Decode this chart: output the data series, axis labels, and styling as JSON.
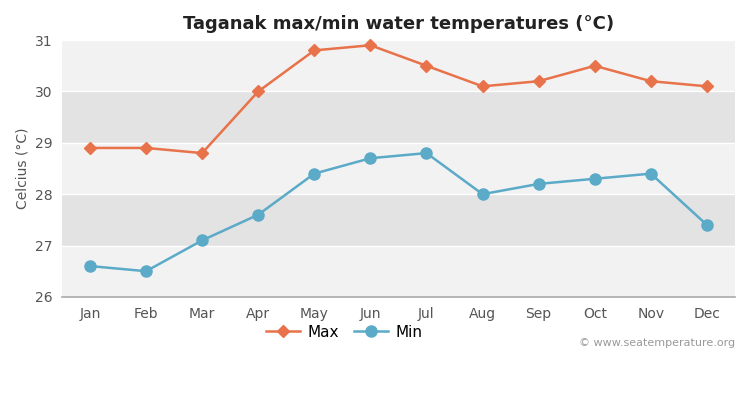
{
  "title": "Taganak max/min water temperatures (°C)",
  "ylabel": "Celcius (°C)",
  "months": [
    "Jan",
    "Feb",
    "Mar",
    "Apr",
    "May",
    "Jun",
    "Jul",
    "Aug",
    "Sep",
    "Oct",
    "Nov",
    "Dec"
  ],
  "max_temps": [
    28.9,
    28.9,
    28.8,
    30.0,
    30.8,
    30.9,
    30.5,
    30.1,
    30.2,
    30.5,
    30.2,
    30.1
  ],
  "min_temps": [
    26.6,
    26.5,
    27.1,
    27.6,
    28.4,
    28.7,
    28.8,
    28.0,
    28.2,
    28.3,
    28.4,
    27.4
  ],
  "ylim": [
    26.0,
    31.0
  ],
  "yticks": [
    26,
    27,
    28,
    29,
    30,
    31
  ],
  "max_color": "#e8724a",
  "min_color": "#5baac8",
  "fig_bg_color": "#ffffff",
  "band_light": "#f2f2f2",
  "band_dark": "#e3e3e3",
  "bottom_spine_color": "#aaaaaa",
  "max_marker": "D",
  "min_marker": "o",
  "line_width": 1.8,
  "max_marker_size": 6,
  "min_marker_size": 8,
  "watermark": "© www.seatemperature.org",
  "title_fontsize": 13,
  "label_fontsize": 10,
  "tick_fontsize": 10,
  "legend_fontsize": 11
}
